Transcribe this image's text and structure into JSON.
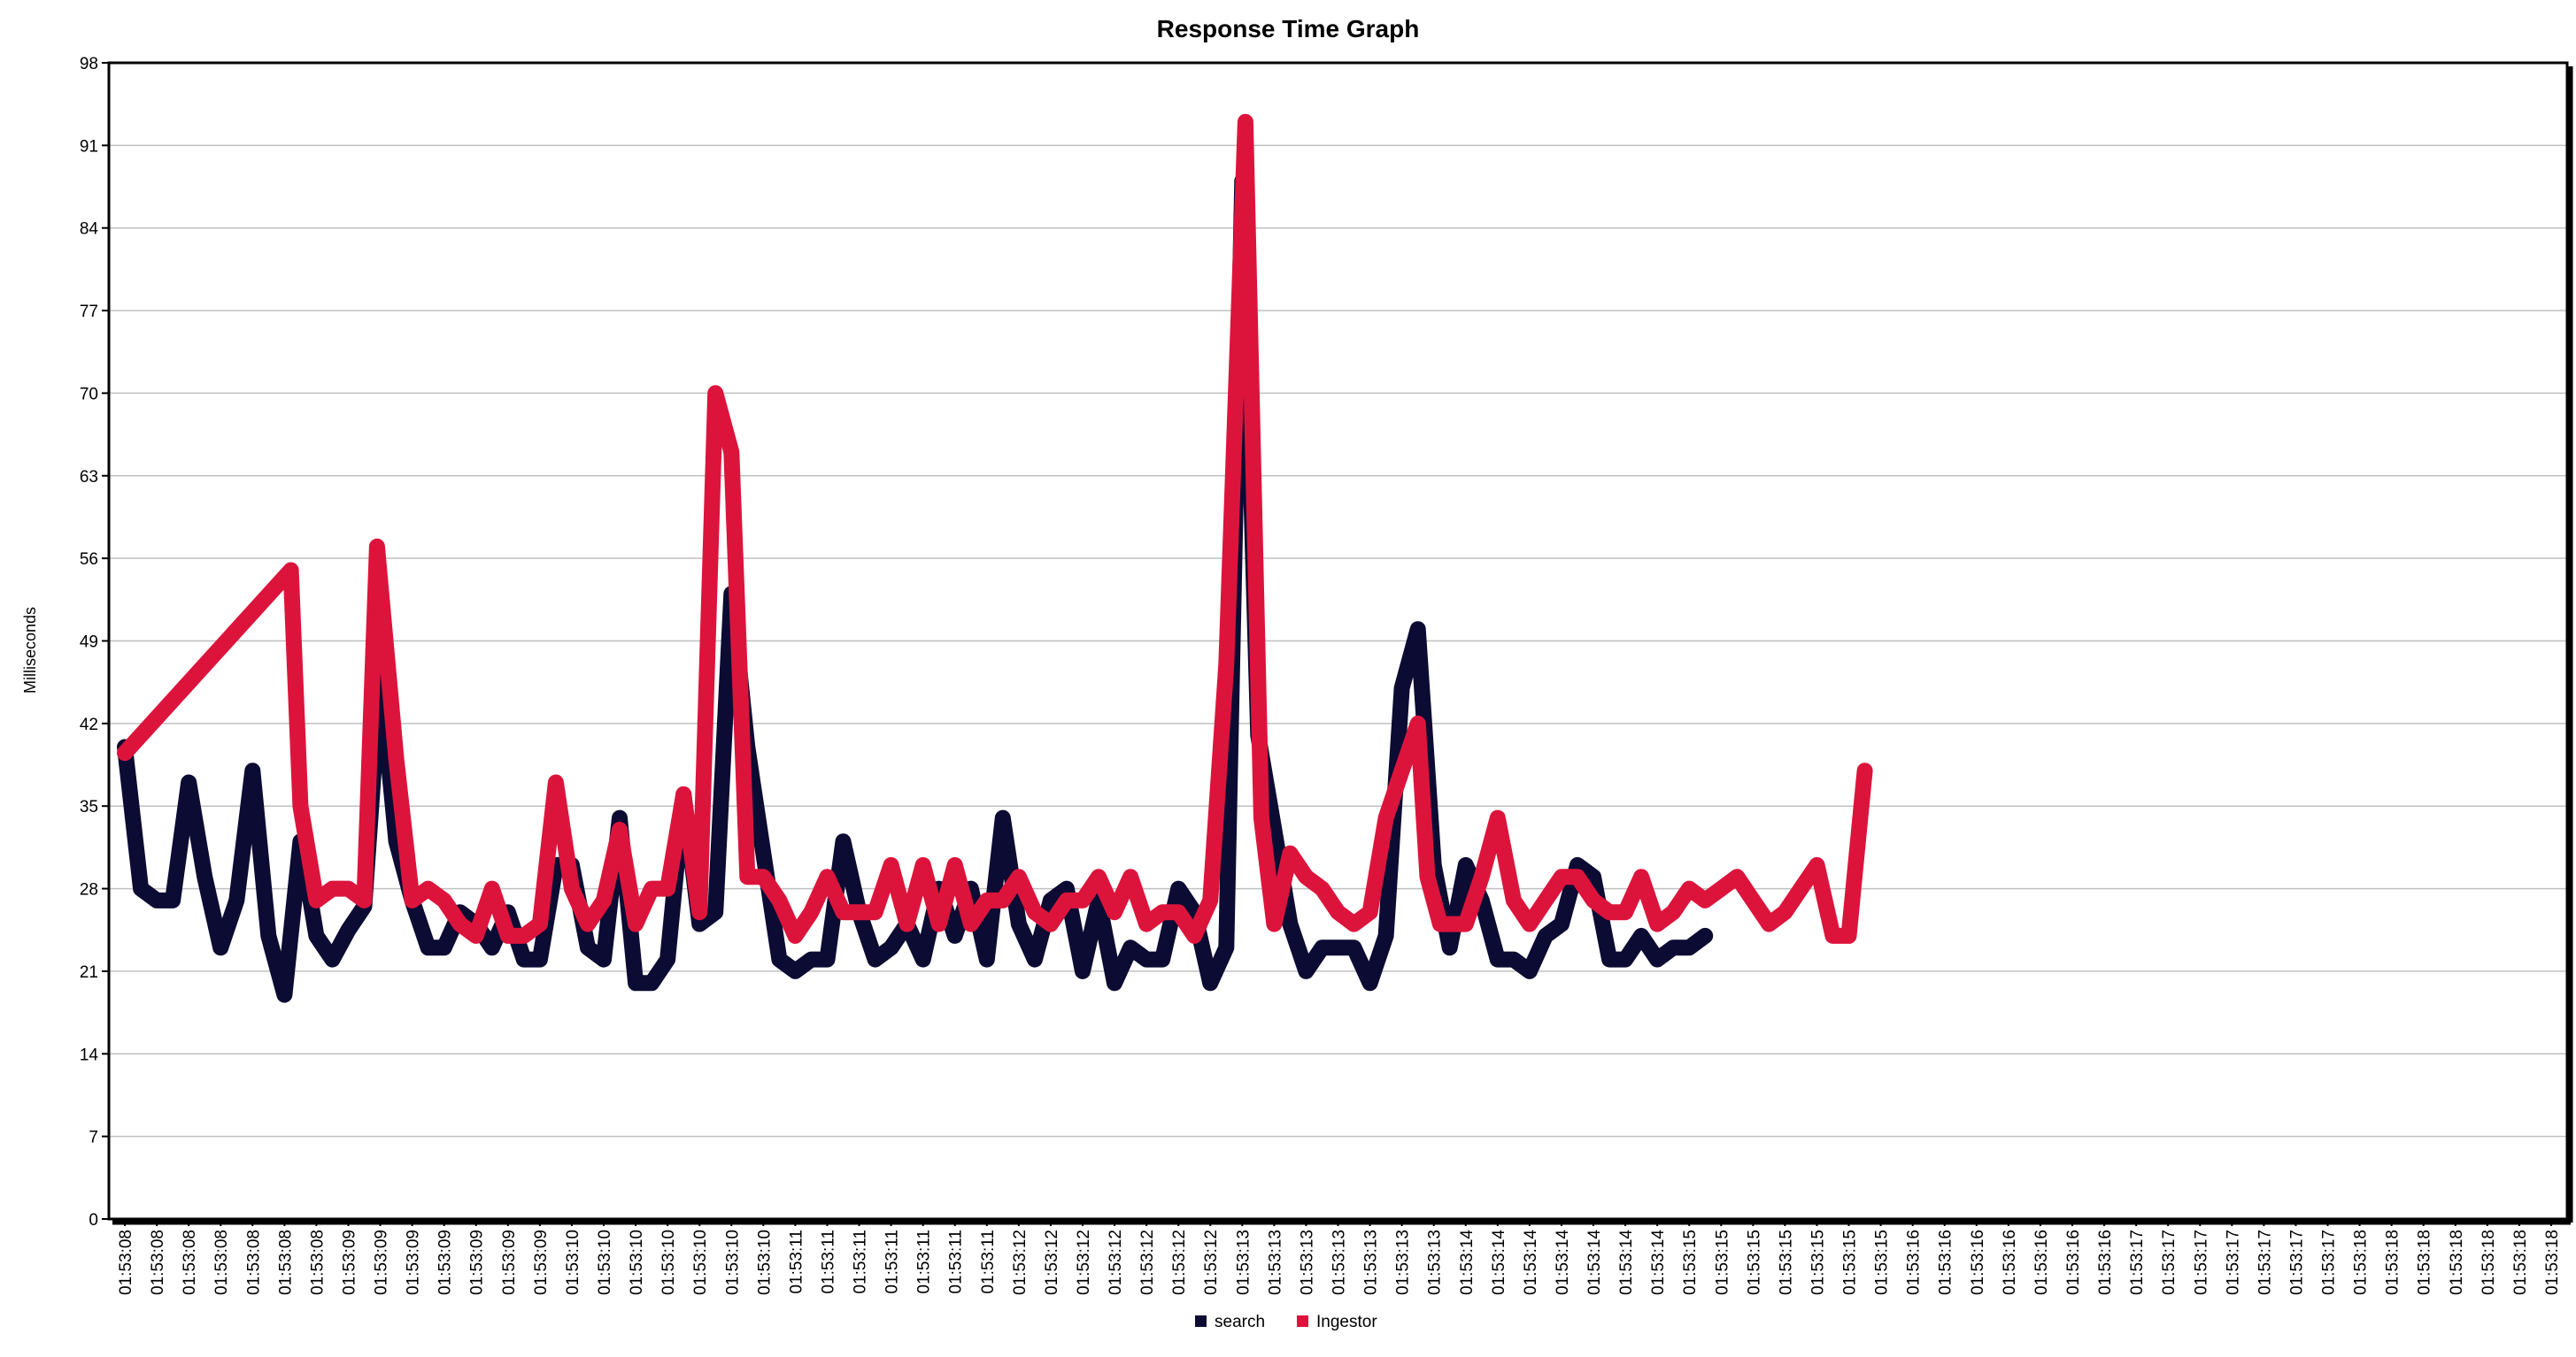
{
  "chart_data": {
    "type": "line",
    "title": "Response Time Graph",
    "xlabel": "",
    "ylabel": "Milliseconds",
    "ylim": [
      0,
      98
    ],
    "yticks": [
      0,
      7,
      14,
      21,
      28,
      35,
      42,
      49,
      56,
      63,
      70,
      77,
      84,
      91,
      98
    ],
    "grid": true,
    "legend_position": "bottom-center",
    "x_ticks": [
      "01:53:08",
      "01:53:08",
      "01:53:08",
      "01:53:08",
      "01:53:08",
      "01:53:08",
      "01:53:08",
      "01:53:09",
      "01:53:09",
      "01:53:09",
      "01:53:09",
      "01:53:09",
      "01:53:09",
      "01:53:09",
      "01:53:10",
      "01:53:10",
      "01:53:10",
      "01:53:10",
      "01:53:10",
      "01:53:10",
      "01:53:10",
      "01:53:11",
      "01:53:11",
      "01:53:11",
      "01:53:11",
      "01:53:11",
      "01:53:11",
      "01:53:11",
      "01:53:12",
      "01:53:12",
      "01:53:12",
      "01:53:12",
      "01:53:12",
      "01:53:12",
      "01:53:12",
      "01:53:13",
      "01:53:13",
      "01:53:13",
      "01:53:13",
      "01:53:13",
      "01:53:13",
      "01:53:13",
      "01:53:14",
      "01:53:14",
      "01:53:14",
      "01:53:14",
      "01:53:14",
      "01:53:14",
      "01:53:14",
      "01:53:15",
      "01:53:15",
      "01:53:15",
      "01:53:15",
      "01:53:15",
      "01:53:15",
      "01:53:15",
      "01:53:16",
      "01:53:16",
      "01:53:16",
      "01:53:16",
      "01:53:16",
      "01:53:16",
      "01:53:16",
      "01:53:17",
      "01:53:17",
      "01:53:17",
      "01:53:17",
      "01:53:17",
      "01:53:17",
      "01:53:17",
      "01:53:18",
      "01:53:18",
      "01:53:18",
      "01:53:18",
      "01:53:18",
      "01:53:18",
      "01:53:18"
    ],
    "series": [
      {
        "name": "search",
        "color": "#0b0b33",
        "points": [
          [
            0,
            40
          ],
          [
            0.5,
            28
          ],
          [
            1,
            27
          ],
          [
            1.5,
            27
          ],
          [
            2,
            37
          ],
          [
            2.5,
            29
          ],
          [
            3,
            23
          ],
          [
            3.5,
            27
          ],
          [
            4,
            38
          ],
          [
            4.5,
            24
          ],
          [
            5,
            19
          ],
          [
            5.5,
            32
          ],
          [
            6,
            24
          ],
          [
            6.5,
            22
          ],
          [
            7,
            24.5
          ],
          [
            7.5,
            26.5
          ],
          [
            8,
            46
          ],
          [
            8.5,
            32
          ],
          [
            9,
            27
          ],
          [
            9.5,
            23
          ],
          [
            10,
            23
          ],
          [
            10.5,
            26
          ],
          [
            11,
            25
          ],
          [
            11.5,
            23
          ],
          [
            12,
            26
          ],
          [
            12.5,
            22
          ],
          [
            13,
            22
          ],
          [
            13.5,
            30
          ],
          [
            14,
            30
          ],
          [
            14.5,
            23
          ],
          [
            15,
            22
          ],
          [
            15.5,
            34
          ],
          [
            16,
            20
          ],
          [
            16.5,
            20
          ],
          [
            17,
            22
          ],
          [
            17.5,
            36
          ],
          [
            18,
            25
          ],
          [
            18.5,
            26
          ],
          [
            19,
            53
          ],
          [
            19.5,
            40
          ],
          [
            20,
            31
          ],
          [
            20.5,
            22
          ],
          [
            21,
            21
          ],
          [
            21.5,
            22
          ],
          [
            22,
            22
          ],
          [
            22.5,
            32
          ],
          [
            23,
            26
          ],
          [
            23.5,
            22
          ],
          [
            24,
            23
          ],
          [
            24.5,
            25
          ],
          [
            25,
            22
          ],
          [
            25.5,
            28
          ],
          [
            26,
            24
          ],
          [
            26.5,
            28
          ],
          [
            27,
            22
          ],
          [
            27.5,
            34
          ],
          [
            28,
            25
          ],
          [
            28.5,
            22
          ],
          [
            29,
            27
          ],
          [
            29.5,
            28
          ],
          [
            30,
            21
          ],
          [
            30.5,
            27
          ],
          [
            31,
            20
          ],
          [
            31.5,
            23
          ],
          [
            32,
            22
          ],
          [
            32.5,
            22
          ],
          [
            33,
            28
          ],
          [
            33.5,
            26
          ],
          [
            34,
            20
          ],
          [
            34.5,
            23
          ],
          [
            35,
            88
          ],
          [
            35.5,
            41
          ],
          [
            36,
            33
          ],
          [
            36.5,
            25
          ],
          [
            37,
            21
          ],
          [
            37.5,
            23
          ],
          [
            38,
            23
          ],
          [
            38.5,
            23
          ],
          [
            39,
            20
          ],
          [
            39.5,
            24
          ],
          [
            40,
            45
          ],
          [
            40.5,
            50
          ],
          [
            41,
            30
          ],
          [
            41.5,
            23
          ],
          [
            42,
            30
          ],
          [
            42.5,
            27
          ],
          [
            43,
            22
          ],
          [
            43.5,
            22
          ],
          [
            44,
            21
          ],
          [
            44.5,
            24
          ],
          [
            45,
            25
          ],
          [
            45.5,
            30
          ],
          [
            46,
            29
          ],
          [
            46.5,
            22
          ],
          [
            47,
            22
          ],
          [
            47.5,
            24
          ],
          [
            48,
            22
          ],
          [
            48.5,
            23
          ],
          [
            49,
            23
          ],
          [
            49.5,
            24
          ]
        ]
      },
      {
        "name": "Ingestor",
        "color": "#dc143c",
        "points": [
          [
            0,
            39.5
          ],
          [
            5.2,
            55
          ],
          [
            5.5,
            35
          ],
          [
            6,
            27
          ],
          [
            6.5,
            28
          ],
          [
            7,
            28
          ],
          [
            7.5,
            27
          ],
          [
            7.9,
            57
          ],
          [
            8.5,
            39
          ],
          [
            9,
            27
          ],
          [
            9.5,
            28
          ],
          [
            10,
            27
          ],
          [
            10.5,
            25
          ],
          [
            11,
            24
          ],
          [
            11.5,
            28
          ],
          [
            12,
            24
          ],
          [
            12.5,
            24
          ],
          [
            13,
            25
          ],
          [
            13.5,
            37
          ],
          [
            14,
            28
          ],
          [
            14.5,
            25
          ],
          [
            15,
            27
          ],
          [
            15.5,
            33
          ],
          [
            16,
            25
          ],
          [
            16.5,
            28
          ],
          [
            17,
            28
          ],
          [
            17.5,
            36
          ],
          [
            18,
            26
          ],
          [
            18.5,
            70
          ],
          [
            19,
            65
          ],
          [
            19.5,
            29
          ],
          [
            20,
            29
          ],
          [
            20.5,
            27
          ],
          [
            21,
            24
          ],
          [
            21.5,
            26
          ],
          [
            22,
            29
          ],
          [
            22.5,
            26
          ],
          [
            23,
            26
          ],
          [
            23.5,
            26
          ],
          [
            24,
            30
          ],
          [
            24.5,
            25
          ],
          [
            25,
            30
          ],
          [
            25.5,
            25
          ],
          [
            26,
            30
          ],
          [
            26.5,
            25
          ],
          [
            27,
            27
          ],
          [
            27.5,
            27
          ],
          [
            28,
            29
          ],
          [
            28.5,
            26
          ],
          [
            29,
            25
          ],
          [
            29.5,
            27
          ],
          [
            30,
            27
          ],
          [
            30.5,
            29
          ],
          [
            31,
            26
          ],
          [
            31.5,
            29
          ],
          [
            32,
            25
          ],
          [
            32.5,
            26
          ],
          [
            33,
            26
          ],
          [
            33.5,
            24
          ],
          [
            34,
            27
          ],
          [
            34.5,
            47
          ],
          [
            35.1,
            93
          ],
          [
            35.6,
            34
          ],
          [
            36,
            25
          ],
          [
            36.5,
            31
          ],
          [
            37,
            29
          ],
          [
            37.5,
            28
          ],
          [
            38,
            26
          ],
          [
            38.5,
            25
          ],
          [
            39,
            26
          ],
          [
            39.5,
            34
          ],
          [
            40,
            38
          ],
          [
            40.5,
            42
          ],
          [
            40.8,
            29
          ],
          [
            41.2,
            25
          ],
          [
            42,
            25
          ],
          [
            42.5,
            29
          ],
          [
            43,
            34
          ],
          [
            43.5,
            27
          ],
          [
            44,
            25
          ],
          [
            44.5,
            27
          ],
          [
            45,
            29
          ],
          [
            45.5,
            29
          ],
          [
            46,
            27
          ],
          [
            46.5,
            26
          ],
          [
            47,
            26
          ],
          [
            47.5,
            29
          ],
          [
            48,
            25
          ],
          [
            48.5,
            26
          ],
          [
            49,
            28
          ],
          [
            49.5,
            27
          ],
          [
            50,
            28
          ],
          [
            50.5,
            29
          ],
          [
            51,
            27
          ],
          [
            51.5,
            25
          ],
          [
            52,
            26
          ],
          [
            52.5,
            28
          ],
          [
            53,
            30
          ],
          [
            53.5,
            24
          ],
          [
            54,
            24
          ],
          [
            54.5,
            38
          ]
        ]
      }
    ]
  }
}
